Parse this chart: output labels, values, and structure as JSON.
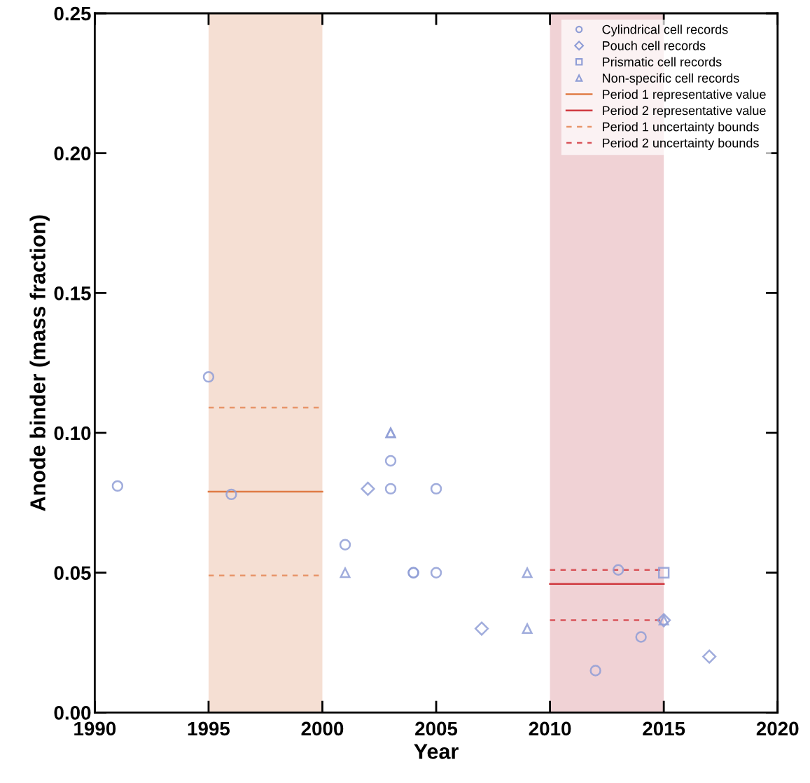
{
  "chart_data": {
    "type": "scatter",
    "xlabel": "Year",
    "ylabel": "Anode binder (mass fraction)",
    "xlim": [
      1990,
      2020
    ],
    "xticks": [
      1990,
      1995,
      2000,
      2005,
      2010,
      2015,
      2020
    ],
    "ylim": [
      0,
      0.25
    ],
    "yticks": [
      {
        "value": 0,
        "label": "0.00"
      },
      {
        "value": 0.05,
        "label": "0.05"
      },
      {
        "value": 0.1,
        "label": "0.10"
      },
      {
        "value": 0.15,
        "label": "0.15"
      },
      {
        "value": 0.2,
        "label": "0.20"
      },
      {
        "value": 0.25,
        "label": "0.25"
      }
    ],
    "grid": false,
    "legend": "top right",
    "bands": [
      {
        "axis": "x",
        "from": 1995,
        "to": 2000,
        "color": "#f5dfd3"
      },
      {
        "axis": "x",
        "from": 2010,
        "to": 2015,
        "color": "#f0d2d5"
      }
    ],
    "series": [
      {
        "name": "Cylindrical cell records",
        "marker": "circle",
        "color": "#8f9dd6",
        "x": [
          1991,
          1995,
          1996,
          2001,
          2003,
          2003,
          2004,
          2004,
          2005,
          2005,
          2012,
          2013,
          2014
        ],
        "values": [
          0.081,
          0.12,
          0.078,
          0.06,
          0.09,
          0.08,
          0.05,
          0.05,
          0.08,
          0.05,
          0.015,
          0.051,
          0.027
        ]
      },
      {
        "name": "Pouch cell records",
        "marker": "diamond",
        "color": "#8f9dd6",
        "x": [
          2002,
          2007,
          2015,
          2017
        ],
        "values": [
          0.08,
          0.03,
          0.033,
          0.02
        ]
      },
      {
        "name": "Prismatic cell records",
        "marker": "square",
        "color": "#8f9dd6",
        "x": [
          2015
        ],
        "values": [
          0.05
        ]
      },
      {
        "name": "Non-specific cell records",
        "marker": "triangle",
        "color": "#8f9dd6",
        "x": [
          2001,
          2003,
          2003,
          2009,
          2009,
          2015
        ],
        "values": [
          0.05,
          0.1,
          0.1,
          0.05,
          0.03,
          0.033
        ]
      },
      {
        "name": "Period 1 representative value",
        "type": "line",
        "line_style": "solid",
        "color": "#e07b45",
        "x": [
          1995,
          2000
        ],
        "values": [
          0.079,
          0.079
        ]
      },
      {
        "name": "Period 2 representative value",
        "type": "line",
        "line_style": "solid",
        "color": "#d0393f",
        "x": [
          2010,
          2015
        ],
        "values": [
          0.046,
          0.046
        ]
      },
      {
        "name": "Period 1 uncertainty bounds",
        "type": "line",
        "line_style": "dashed",
        "color": "#e8956a",
        "x": [
          1995,
          2000
        ],
        "values": [
          0.109,
          0.109
        ]
      },
      {
        "type": "line",
        "line_style": "dashed",
        "color": "#e8956a",
        "x": [
          1995,
          2000
        ],
        "values": [
          0.049,
          0.049
        ]
      },
      {
        "name": "Period 2 uncertainty bounds",
        "type": "line",
        "line_style": "dashed",
        "color": "#d9545a",
        "x": [
          2010,
          2015
        ],
        "values": [
          0.051,
          0.051
        ]
      },
      {
        "type": "line",
        "line_style": "dashed",
        "color": "#d9545a",
        "x": [
          2010,
          2015
        ],
        "values": [
          0.033,
          0.033
        ]
      }
    ]
  }
}
